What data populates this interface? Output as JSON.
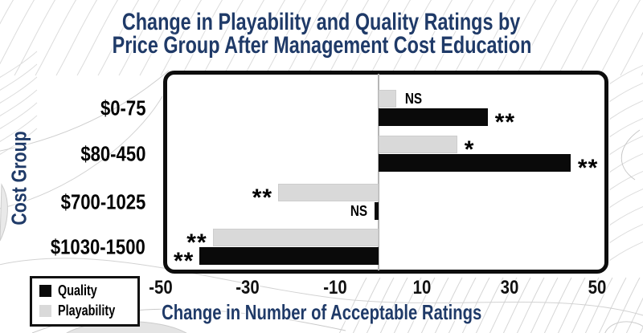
{
  "title": {
    "line1": "Change in Playability and Quality Ratings by",
    "line2": "Price Group After Management Cost Education"
  },
  "axis": {
    "x_label": "Change in Number of Acceptable Ratings",
    "y_label": "Cost Group"
  },
  "legend": {
    "items": [
      {
        "label": "Quality",
        "color": "#0a0a0a"
      },
      {
        "label": "Playability",
        "color": "#d9d9d9"
      }
    ]
  },
  "chart_data": {
    "type": "bar",
    "orientation": "horizontal",
    "title": "Change in Playability and Quality Ratings by Price Group After Management Cost Education",
    "xlabel": "Change in Number of Acceptable Ratings",
    "ylabel": "Cost Group",
    "categories": [
      "$0-75",
      "$80-450",
      "$700-1025",
      "$1030-1500"
    ],
    "series": [
      {
        "name": "Playability",
        "color": "#d9d9d9",
        "values": [
          4,
          18,
          -23,
          -38
        ],
        "significance": [
          "NS",
          "*",
          "**",
          "**"
        ]
      },
      {
        "name": "Quality",
        "color": "#0a0a0a",
        "values": [
          25,
          44,
          -1,
          -41
        ],
        "significance": [
          "**",
          "**",
          "NS",
          "**"
        ]
      }
    ],
    "bar_order_top_to_bottom": [
      "Playability",
      "Quality"
    ],
    "x_ticks": [
      -50,
      -30,
      -10,
      10,
      30,
      50
    ],
    "xlim": [
      -52,
      52
    ],
    "grid": false,
    "zero_line": true,
    "legend_position": "bottom-left"
  },
  "colors": {
    "navy": "#1f3a68",
    "bar_black": "#0a0a0a",
    "bar_gray": "#d9d9d9",
    "zero_line": "#b5b5b5",
    "plot_border": "#0d0d0d",
    "background": "#ffffff",
    "contour_line": "#d9d9d9"
  }
}
